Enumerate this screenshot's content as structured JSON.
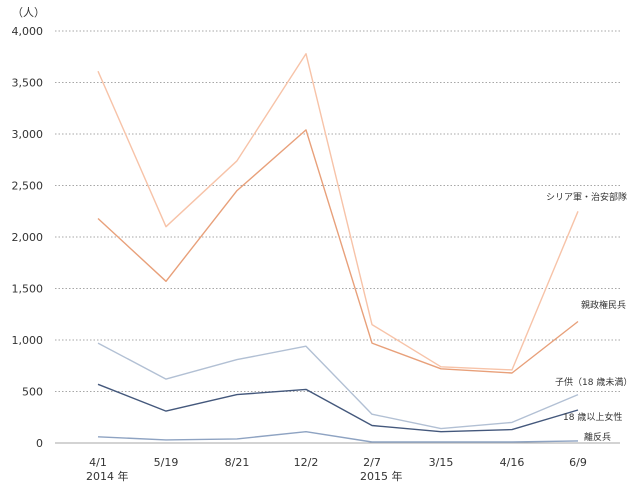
{
  "chart_data": {
    "type": "line",
    "unit_label": "（人）",
    "categories": [
      "4/1",
      "5/19",
      "8/21",
      "12/2",
      "2/7",
      "3/15",
      "4/16",
      "6/9"
    ],
    "year_labels": [
      {
        "label": "2014 年",
        "category_index": 0
      },
      {
        "label": "2015 年",
        "category_index": 4
      }
    ],
    "ylim": [
      0,
      4000
    ],
    "yticks": [
      0,
      500,
      1000,
      1500,
      2000,
      2500,
      3000,
      3500,
      4000
    ],
    "ytick_labels": [
      "0",
      "500",
      "1,000",
      "1,500",
      "2,000",
      "2,500",
      "3,000",
      "3,500",
      "4,000"
    ],
    "grid": true,
    "series": [
      {
        "name": "シリア軍・治安部隊",
        "color": "#f7c3a8",
        "values": [
          3610,
          2100,
          2740,
          3780,
          1150,
          740,
          710,
          2250
        ]
      },
      {
        "name": "親政権民兵",
        "color": "#e8a07a",
        "values": [
          2180,
          1570,
          2450,
          3040,
          970,
          720,
          680,
          1180
        ]
      },
      {
        "name": "子供（18 歳未満）",
        "color": "#b2c0d4",
        "values": [
          970,
          620,
          810,
          940,
          280,
          140,
          200,
          470
        ]
      },
      {
        "name": "18 歳以上女性",
        "color": "#44587c",
        "values": [
          570,
          310,
          470,
          520,
          170,
          110,
          130,
          320
        ]
      },
      {
        "name": "離反兵",
        "color": "#8ea3c2",
        "values": [
          60,
          30,
          40,
          110,
          10,
          10,
          10,
          20
        ]
      }
    ]
  }
}
